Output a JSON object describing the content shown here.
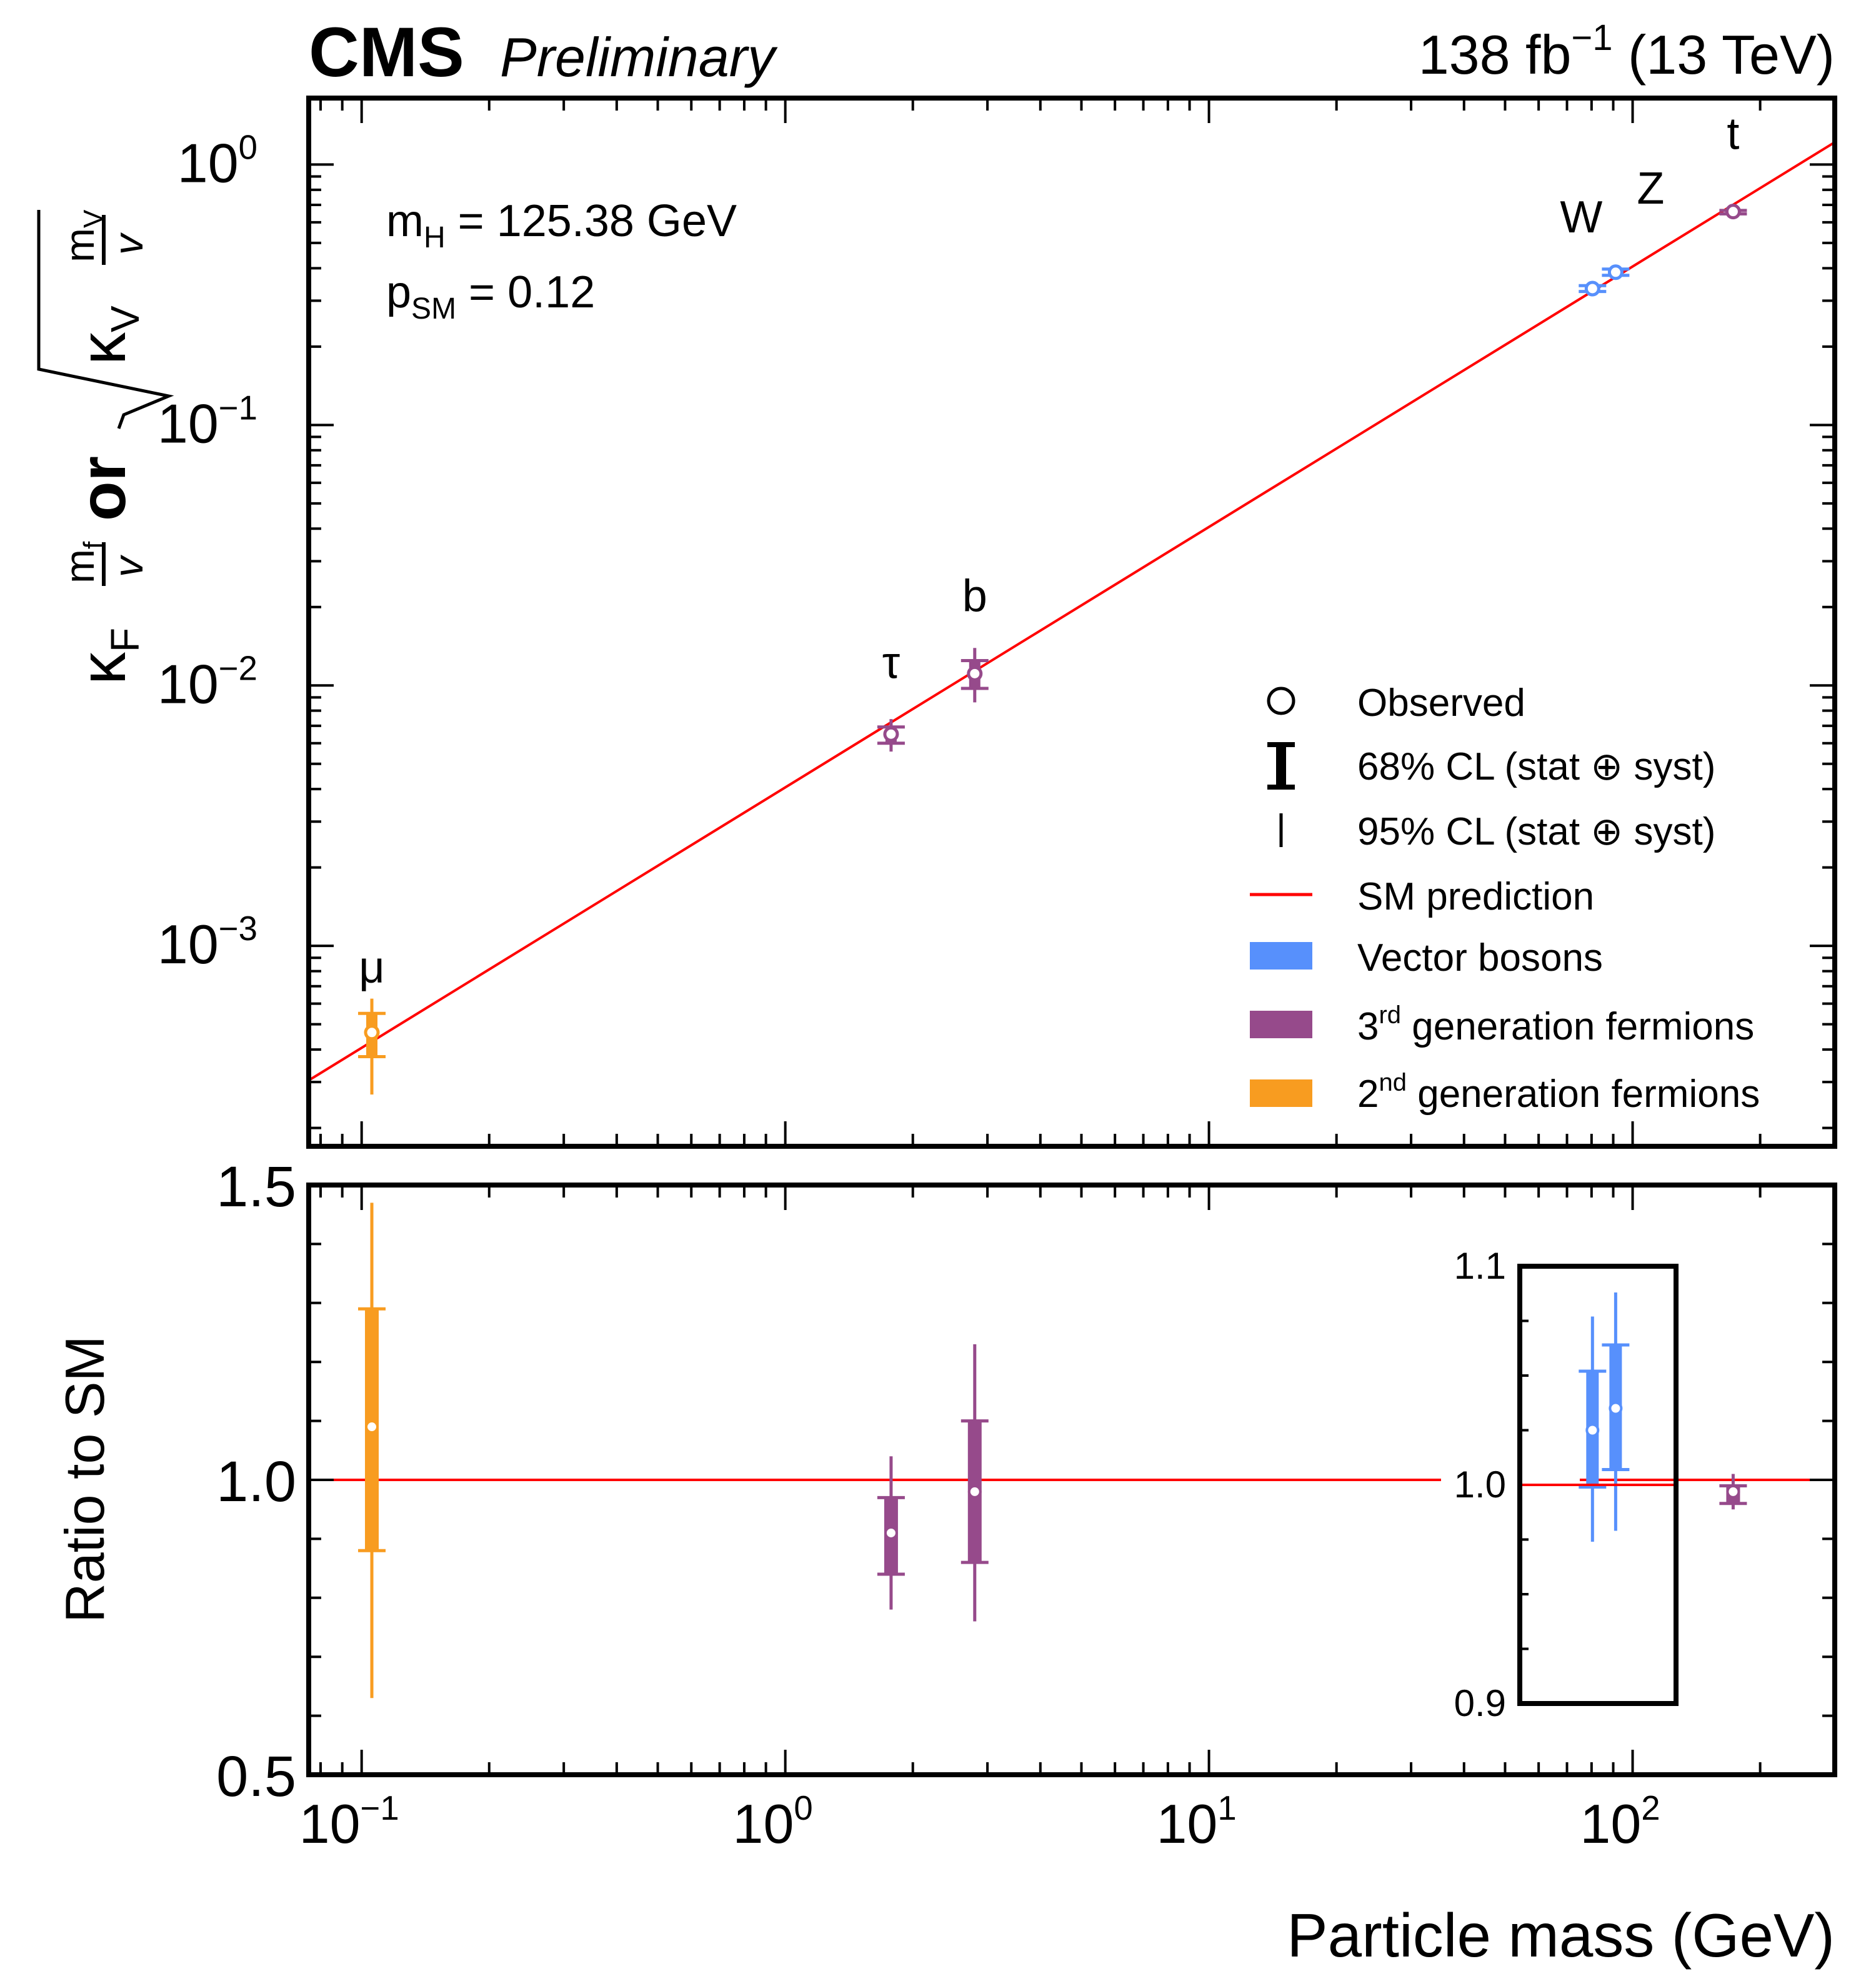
{
  "header": {
    "experiment": "CMS",
    "status": "Preliminary",
    "lumi": "138 fb",
    "lumi_exp": "−1",
    "energy": "(13 TeV)"
  },
  "annotations": {
    "mh_label": "m",
    "mh_sub": "H",
    "mh_value": " = 125.38 GeV",
    "psm_label": "p",
    "psm_sub": "SM",
    "psm_value": " = 0.12"
  },
  "colors": {
    "vector": "#5790fc",
    "third_gen": "#964a8b",
    "second_gen": "#f89c20",
    "sm": "#e42536"
  },
  "legend": {
    "observed": "Observed",
    "cl68": "68% CL (stat ⊕ syst)",
    "cl95": "95% CL (stat ⊕ syst)",
    "sm": "SM prediction",
    "vector": "Vector bosons",
    "third_num": "3",
    "third_sup": "rd",
    "third_text": " generation fermions",
    "second_num": "2",
    "second_sup": "nd",
    "second_text": " generation fermions"
  },
  "chart_data": {
    "type": "scatter",
    "xscale": "log",
    "xlim": [
      0.075,
      300
    ],
    "xlabel": "Particle mass (GeV)",
    "x_ticks": [
      "10",
      "10",
      "10",
      "10"
    ],
    "x_tick_exps": [
      "−1",
      "0",
      "1",
      "2"
    ],
    "top_panel": {
      "yscale": "log",
      "ylim": [
        0.00017,
        1.8
      ],
      "ylabel": "κ_F m_f/v or √κ_V m_V/v",
      "ylabel_kappa_f": "κ",
      "ylabel_F": "F",
      "ylabel_mf": "m",
      "ylabel_f": "f",
      "ylabel_v": "v",
      "ylabel_or": "or",
      "ylabel_kappa_v": "κ",
      "ylabel_V": "V",
      "ylabel_mv": "m",
      "ylabel_Vsub": "V",
      "y_ticks": [
        "10",
        "10",
        "10",
        "10"
      ],
      "y_tick_exps": [
        "0",
        "−1",
        "−2",
        "−3"
      ],
      "sm_slope": 0.00406
    },
    "bottom_panel": {
      "ylim": [
        0.5,
        1.5
      ],
      "ylabel": "Ratio to SM",
      "y_ticks": [
        "0.5",
        "1.0",
        "1.5"
      ],
      "inset": {
        "ylim": [
          0.9,
          1.1
        ],
        "y_ticks": [
          "0.9",
          "1.0",
          "1.1"
        ]
      }
    },
    "points": [
      {
        "name": "μ",
        "mass": 0.1057,
        "value": 0.000465,
        "ratio": 1.09,
        "r68": [
          0.88,
          1.29
        ],
        "r95": [
          0.63,
          1.47
        ],
        "group": "second_gen",
        "panel": "main"
      },
      {
        "name": "τ",
        "mass": 1.777,
        "value": 0.0065,
        "ratio": 0.91,
        "r68": [
          0.84,
          0.97
        ],
        "r95": [
          0.78,
          1.04
        ],
        "group": "third_gen",
        "panel": "main"
      },
      {
        "name": "b",
        "mass": 2.8,
        "value": 0.0111,
        "ratio": 0.98,
        "r68": [
          0.86,
          1.1
        ],
        "r95": [
          0.76,
          1.23
        ],
        "group": "third_gen",
        "panel": "main"
      },
      {
        "name": "W",
        "mass": 80.4,
        "value": 0.334,
        "ratio": 1.025,
        "r68": [
          0.999,
          1.052
        ],
        "r95": [
          0.974,
          1.077
        ],
        "group": "vector",
        "panel": "inset"
      },
      {
        "name": "Z",
        "mass": 91.19,
        "value": 0.386,
        "ratio": 1.035,
        "r68": [
          1.007,
          1.064
        ],
        "r95": [
          0.979,
          1.088
        ],
        "group": "vector",
        "panel": "inset"
      },
      {
        "name": "t",
        "mass": 172.7,
        "value": 0.66,
        "ratio": 0.98,
        "r68": [
          0.96,
          0.99
        ],
        "r95": [
          0.95,
          1.01
        ],
        "group": "third_gen",
        "panel": "main"
      }
    ]
  }
}
